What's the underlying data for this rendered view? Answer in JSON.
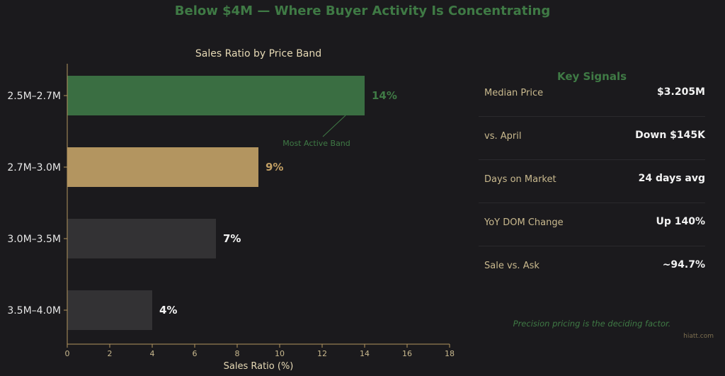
{
  "title": "Below $4M — Where Buyer Activity Is Concentrating",
  "chart_data": {
    "type": "bar",
    "orientation": "horizontal",
    "title": "Sales Ratio by Price Band",
    "xlabel": "Sales Ratio (%)",
    "ylabel": "",
    "xlim": [
      0,
      18
    ],
    "xticks": [
      0,
      2,
      4,
      6,
      8,
      10,
      12,
      14,
      16,
      18
    ],
    "categories": [
      "2.5M–2.7M",
      "2.7M–3.0M",
      "3.0M–3.5M",
      "3.5M–4.0M"
    ],
    "values": [
      14,
      9,
      7,
      4
    ],
    "value_labels": [
      "14%",
      "9%",
      "7%",
      "4%"
    ],
    "bar_colors": [
      "#3a6e42",
      "#b39560",
      "#333234",
      "#333234"
    ],
    "label_colors": [
      "#3f7a45",
      "#c19e63",
      "#f2f2f2",
      "#f2f2f2"
    ],
    "annotation": {
      "text": "Most Active Band",
      "target_index": 0
    },
    "grid": false
  },
  "key_signals": {
    "title": "Key Signals",
    "rows": [
      {
        "label": "Median Price",
        "value": "$3.205M"
      },
      {
        "label": "vs. April",
        "value": "Down $145K"
      },
      {
        "label": "Days on Market",
        "value": "24 days avg"
      },
      {
        "label": "YoY DOM Change",
        "value": "Up 140%"
      },
      {
        "label": "Sale vs. Ask",
        "value": "~94.7%"
      }
    ],
    "note": "Precision pricing is the deciding factor."
  },
  "watermark": "hiatt.com",
  "colors": {
    "background": "#1b1a1d",
    "accent_green": "#3f7a45",
    "accent_tan": "#b39560",
    "axis": "#b39560",
    "text_light": "#e6e6e6",
    "text_tan": "#c9b98e"
  }
}
